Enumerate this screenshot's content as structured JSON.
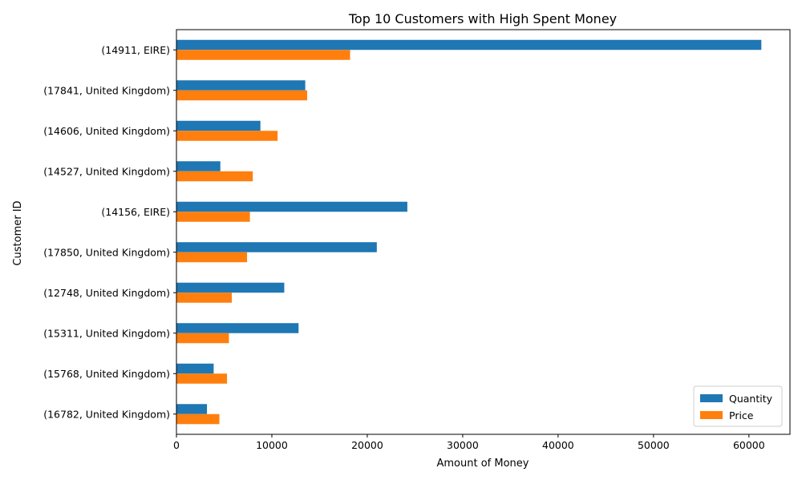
{
  "chart_data": {
    "type": "bar",
    "orientation": "horizontal",
    "title": "Top 10 Customers with High Spent Money",
    "xlabel": "Amount of Money",
    "ylabel": "Customer ID",
    "xlim": [
      0,
      64300
    ],
    "xticks": [
      0,
      10000,
      20000,
      30000,
      40000,
      50000,
      60000
    ],
    "grid": false,
    "legend_position": "bottom-right",
    "categories": [
      "(14911, EIRE)",
      "(17841, United Kingdom)",
      "(14606, United Kingdom)",
      "(14527, United Kingdom)",
      "(14156, EIRE)",
      "(17850, United Kingdom)",
      "(12748, United Kingdom)",
      "(15311, United Kingdom)",
      "(15768, United Kingdom)",
      "(16782, United Kingdom)"
    ],
    "series": [
      {
        "name": "Quantity",
        "color": "#1f77b4",
        "values": [
          61300,
          13500,
          8800,
          4600,
          24200,
          21000,
          11300,
          12800,
          3900,
          3200
        ]
      },
      {
        "name": "Price",
        "color": "#ff7f0e",
        "values": [
          18200,
          13700,
          10600,
          8000,
          7700,
          7400,
          5800,
          5500,
          5300,
          4500
        ]
      }
    ]
  }
}
